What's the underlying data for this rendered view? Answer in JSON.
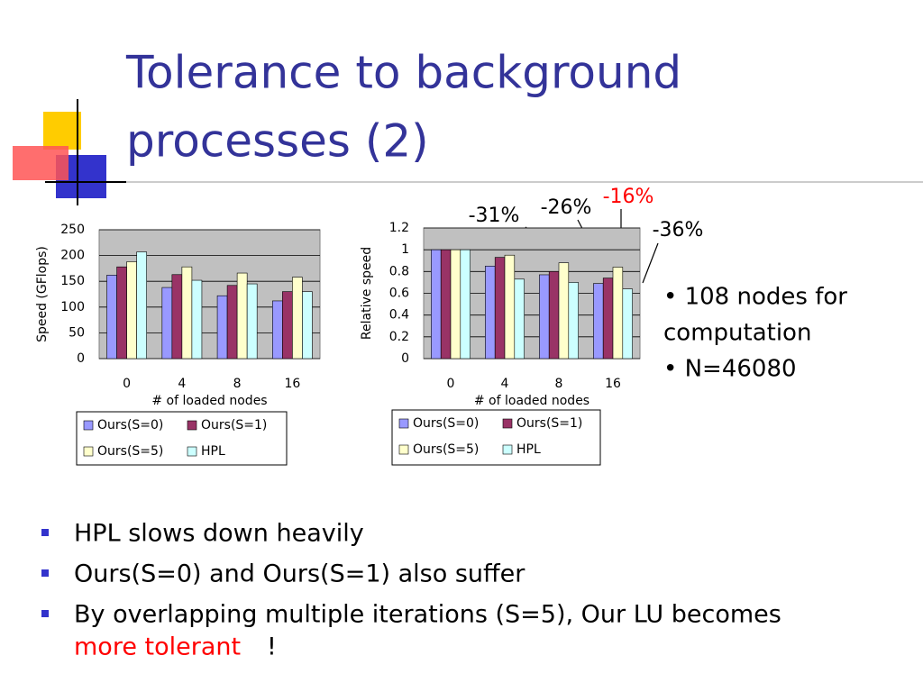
{
  "slide": {
    "title": "Tolerance to background processes (2)",
    "side_bullets": [
      "108 nodes for computation",
      "N=46080"
    ],
    "bullets": [
      "HPL slows down heavily",
      "Ours(S=0) and Ours(S=1) also suffer",
      "By overlapping multiple iterations (S=5), Our LU becomes"
    ],
    "bullet_tail": {
      "red": "more tolerant",
      "rest": "!"
    }
  },
  "chart_data": [
    {
      "type": "bar",
      "ylabel": "Speed (GFlops)",
      "xlabel": "# of loaded nodes",
      "categories": [
        "0",
        "4",
        "8",
        "16"
      ],
      "series": [
        {
          "name": "Ours(S=0)",
          "color": "#9999ff",
          "values": [
            162,
            138,
            122,
            112
          ]
        },
        {
          "name": "Ours(S=1)",
          "color": "#993366",
          "values": [
            178,
            163,
            142,
            130
          ]
        },
        {
          "name": "Ours(S=5)",
          "color": "#ffffcc",
          "values": [
            188,
            178,
            166,
            158
          ]
        },
        {
          "name": "HPL",
          "color": "#ccffff",
          "values": [
            207,
            152,
            145,
            130
          ]
        }
      ],
      "ylim": [
        0,
        250
      ],
      "yticks": [
        0,
        50,
        100,
        150,
        200,
        250
      ],
      "grid": true
    },
    {
      "type": "bar",
      "ylabel": "Relative speed",
      "xlabel": "# of loaded nodes",
      "categories": [
        "0",
        "4",
        "8",
        "16"
      ],
      "series": [
        {
          "name": "Ours(S=0)",
          "color": "#9999ff",
          "values": [
            1,
            0.85,
            0.77,
            0.69
          ]
        },
        {
          "name": "Ours(S=1)",
          "color": "#993366",
          "values": [
            1,
            0.93,
            0.8,
            0.74
          ]
        },
        {
          "name": "Ours(S=5)",
          "color": "#ffffcc",
          "values": [
            1,
            0.95,
            0.88,
            0.84
          ]
        },
        {
          "name": "HPL",
          "color": "#ccffff",
          "values": [
            1,
            0.73,
            0.7,
            0.64
          ]
        }
      ],
      "ylim": [
        0,
        1.2
      ],
      "yticks": [
        0,
        0.2,
        0.4,
        0.6,
        0.8,
        1,
        1.2
      ],
      "grid": true,
      "annotations": [
        "-31%",
        "-26%",
        "-16%",
        "-36%"
      ]
    }
  ]
}
